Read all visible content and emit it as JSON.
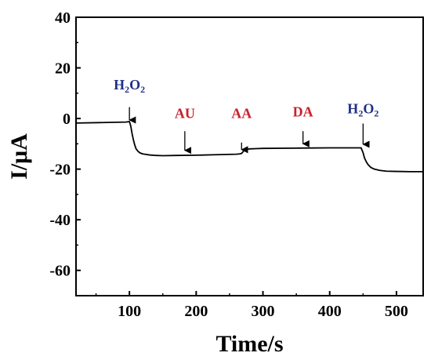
{
  "chart_data": {
    "type": "line",
    "xlabel": "Time/s",
    "ylabel": "I/μA",
    "xlim": [
      20,
      540
    ],
    "ylim": [
      -70,
      40
    ],
    "xticks": [
      100,
      200,
      300,
      400,
      500
    ],
    "yticks": [
      40,
      20,
      0,
      -20,
      -40,
      -60
    ],
    "xtick_labels": [
      "100",
      "200",
      "300",
      "400",
      "500"
    ],
    "ytick_labels": [
      "40",
      "20",
      "0",
      "-20",
      "-40",
      "-60"
    ],
    "grid": false,
    "line_color": "#000000",
    "series": [
      {
        "x": [
          20,
          60,
          95,
          100,
          102,
          104,
          106,
          108,
          110,
          113,
          116,
          120,
          125,
          130,
          140,
          150,
          170,
          200,
          230,
          260,
          265,
          268,
          270,
          272,
          275,
          280,
          290,
          300,
          350,
          400,
          447,
          450,
          452,
          455,
          458,
          462,
          467,
          475,
          485,
          500,
          520,
          540
        ],
        "y": [
          -1.8,
          -1.6,
          -1.4,
          -1.2,
          -3.0,
          -6.0,
          -8.5,
          -10.5,
          -12.0,
          -13.0,
          -13.6,
          -14.0,
          -14.2,
          -14.4,
          -14.6,
          -14.7,
          -14.6,
          -14.5,
          -14.3,
          -14.1,
          -14.0,
          -13.8,
          -13.2,
          -12.5,
          -12.2,
          -12.0,
          -11.9,
          -11.8,
          -11.7,
          -11.6,
          -11.6,
          -13.5,
          -15.5,
          -17.2,
          -18.4,
          -19.4,
          -20.0,
          -20.5,
          -20.8,
          -20.9,
          -21.0,
          -21.0
        ]
      }
    ],
    "annotations": [
      {
        "text": "H",
        "sub1": "2",
        "mid": "O",
        "sub2": "2",
        "x": 100,
        "arrow_from_y": 4.5,
        "arrow_to_y": -0.6,
        "label_y": 11.5,
        "color": "#1f2f86"
      },
      {
        "text": "AU",
        "x": 183,
        "arrow_from_y": -5.0,
        "arrow_to_y": -12.6,
        "label_y": 0.2,
        "color": "#c8202e"
      },
      {
        "text": "AA",
        "x": 268,
        "arrow_from_y": -9.5,
        "arrow_to_y": -12.3,
        "label_y": 0.2,
        "color": "#c8202e"
      },
      {
        "text": "DA",
        "x": 360,
        "arrow_from_y": -5.0,
        "arrow_to_y": -10.0,
        "label_y": 0.8,
        "color": "#c8202e"
      },
      {
        "text": "H",
        "sub1": "2",
        "mid": "O",
        "sub2": "2",
        "x": 450,
        "arrow_from_y": -2.0,
        "arrow_to_y": -10.2,
        "label_y": 2.0,
        "color": "#1f2f86"
      }
    ]
  }
}
